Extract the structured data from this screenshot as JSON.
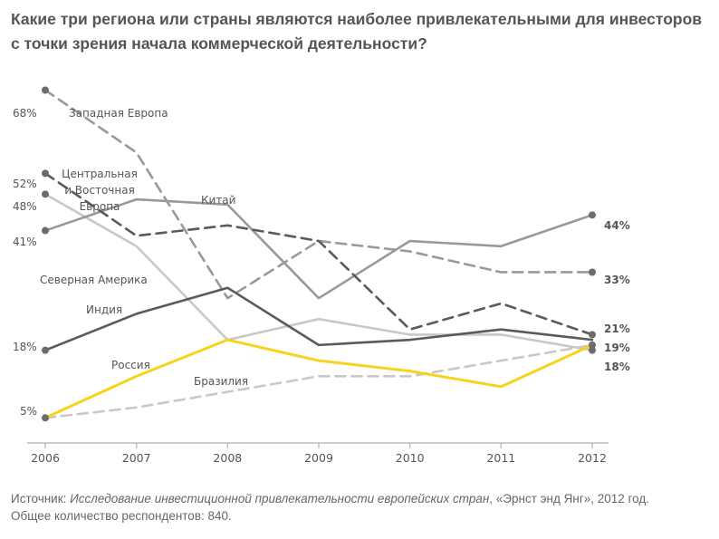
{
  "title": {
    "line1": "Какие три региона или страны являются наиболее привлекательными для инвесторов",
    "line2": "с точки зрения начала коммерческой деятельности?"
  },
  "source": {
    "prefix": "Источник: ",
    "title": "Исследование инвестиционной привлекательности европейских стран",
    "suffix": ", «Эрнст энд Янг», 2012 год.",
    "respondents": "Общее количество респондентов: 840."
  },
  "colors": {
    "dark": "#5a5a5a",
    "mid": "#999999",
    "light": "#c8c8c8",
    "yellow": "#f6d31c",
    "axis": "#bbbbbb"
  },
  "chart_data": {
    "type": "line",
    "title": "",
    "xlabel": "",
    "ylabel": "",
    "x": [
      "2006",
      "2007",
      "2008",
      "2009",
      "2010",
      "2011",
      "2012"
    ],
    "ylim": [
      0,
      70
    ],
    "series": [
      {
        "name": "Западная Европа",
        "values": [
          68,
          56,
          28,
          39,
          37,
          33,
          33
        ],
        "style": "dashed",
        "color": "#999999",
        "start_label": "68%",
        "end_label": "33%"
      },
      {
        "name": "Центральная и Восточная Европа",
        "name_lines": [
          "Центральная",
          "и Восточная",
          "Европа"
        ],
        "values": [
          52,
          40,
          42,
          39,
          22,
          27,
          21
        ],
        "style": "dashed",
        "color": "#5a5a5a",
        "start_label": "52%",
        "end_label": "21%"
      },
      {
        "name": "Северная Америка",
        "values": [
          48,
          38,
          20,
          24,
          21,
          21,
          18
        ],
        "style": "solid",
        "color": "#c8c8c8",
        "start_label": "48%",
        "end_label": "18%"
      },
      {
        "name": "Китай",
        "values": [
          41,
          47,
          46,
          28,
          39,
          38,
          44
        ],
        "style": "solid",
        "color": "#999999",
        "start_label": "41%",
        "end_label": "44%"
      },
      {
        "name": "Индия",
        "values": [
          18,
          25,
          30,
          19,
          20,
          22,
          20
        ],
        "style": "solid",
        "color": "#5a5a5a",
        "start_label": "18%",
        "end_label": ""
      },
      {
        "name": "Россия",
        "values": [
          5,
          13,
          20,
          16,
          14,
          11,
          19
        ],
        "style": "solid",
        "color": "#f6d31c",
        "start_label": "5%",
        "end_label": "19%"
      },
      {
        "name": "Бразилия",
        "values": [
          5,
          7,
          10,
          13,
          13,
          16,
          19
        ],
        "style": "dashed",
        "color": "#c8c8c8",
        "start_label": "",
        "end_label": ""
      }
    ]
  }
}
